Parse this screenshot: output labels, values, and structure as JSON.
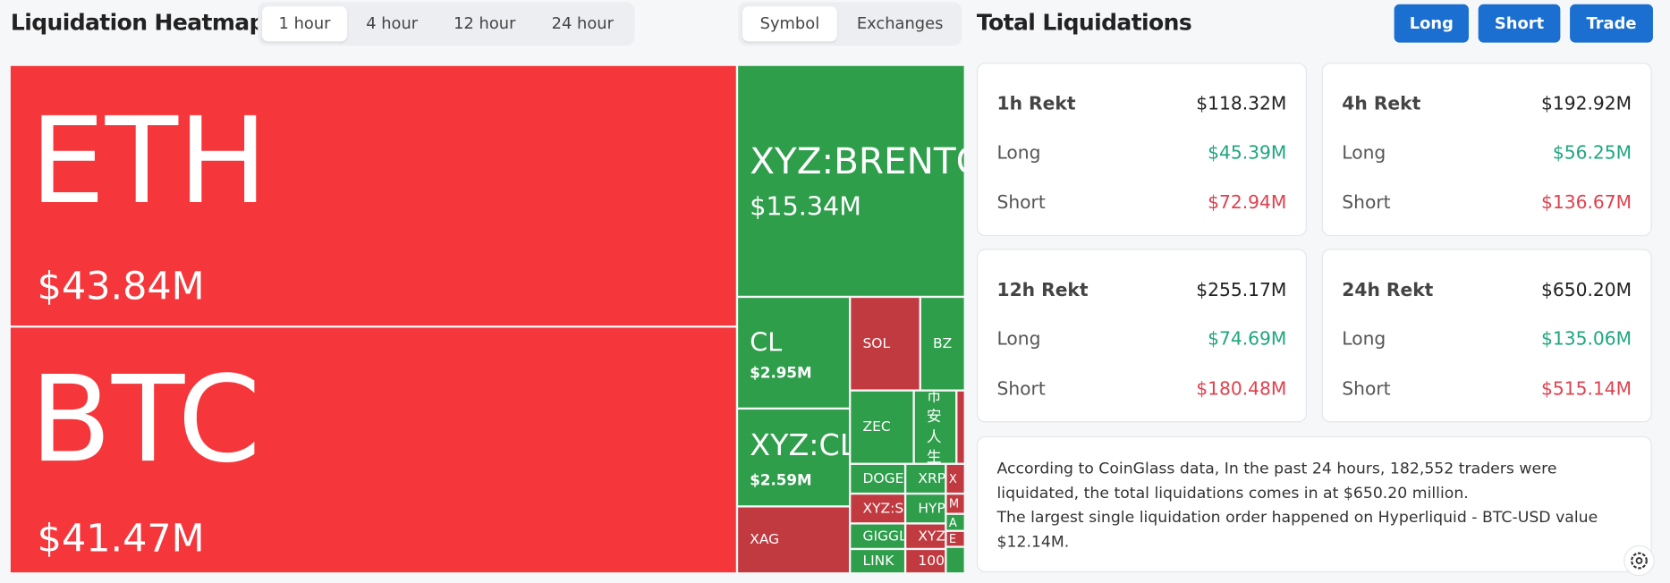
{
  "header": {
    "title": "Liquidation Heatmap",
    "time_tabs": [
      "1 hour",
      "4 hour",
      "12 hour",
      "24 hour"
    ],
    "view_tabs": [
      "Symbol",
      "Exchanges"
    ]
  },
  "heatmap": {
    "tiles": [
      {
        "label": "ETH",
        "value": "$43.84M"
      },
      {
        "label": "BTC",
        "value": "$41.47M"
      },
      {
        "label": "XYZ:BRENTO",
        "value": "$15.34M"
      },
      {
        "label": "CL",
        "value": "$2.95M"
      },
      {
        "label": "XYZ:CL",
        "value": "$2.59M"
      },
      {
        "label": "XAG"
      },
      {
        "label": "SOL"
      },
      {
        "label": "BZ"
      },
      {
        "label": "ZEC"
      },
      {
        "label": "币安人生"
      },
      {
        "label": "DOGE"
      },
      {
        "label": "XRP"
      },
      {
        "label": "X"
      },
      {
        "label": "XYZ:S"
      },
      {
        "label": "HYP"
      },
      {
        "label": "M"
      },
      {
        "label": "A"
      },
      {
        "label": "GIGGL"
      },
      {
        "label": "XYZ"
      },
      {
        "label": "E"
      },
      {
        "label": "LINK"
      },
      {
        "label": "100"
      }
    ]
  },
  "summary": {
    "title": "Total Liquidations",
    "buttons": [
      "Long",
      "Short",
      "Trade"
    ],
    "cards": [
      {
        "title": "1h Rekt",
        "total": "$118.32M",
        "rows": [
          {
            "label": "Long",
            "value": "$45.39M"
          },
          {
            "label": "Short",
            "value": "$72.94M"
          }
        ]
      },
      {
        "title": "4h Rekt",
        "total": "$192.92M",
        "rows": [
          {
            "label": "Long",
            "value": "$56.25M"
          },
          {
            "label": "Short",
            "value": "$136.67M"
          }
        ]
      },
      {
        "title": "12h Rekt",
        "total": "$255.17M",
        "rows": [
          {
            "label": "Long",
            "value": "$74.69M"
          },
          {
            "label": "Short",
            "value": "$180.48M"
          }
        ]
      },
      {
        "title": "24h Rekt",
        "total": "$650.20M",
        "rows": [
          {
            "label": "Long",
            "value": "$135.06M"
          },
          {
            "label": "Short",
            "value": "$515.14M"
          }
        ]
      }
    ],
    "description": [
      "According to CoinGlass data, In the past 24 hours, 182,552 traders were liquidated, the total liquidations comes in at $650.20 million.",
      "The largest single liquidation order happened on Hyperliquid - BTC-USD value $12.14M."
    ]
  }
}
